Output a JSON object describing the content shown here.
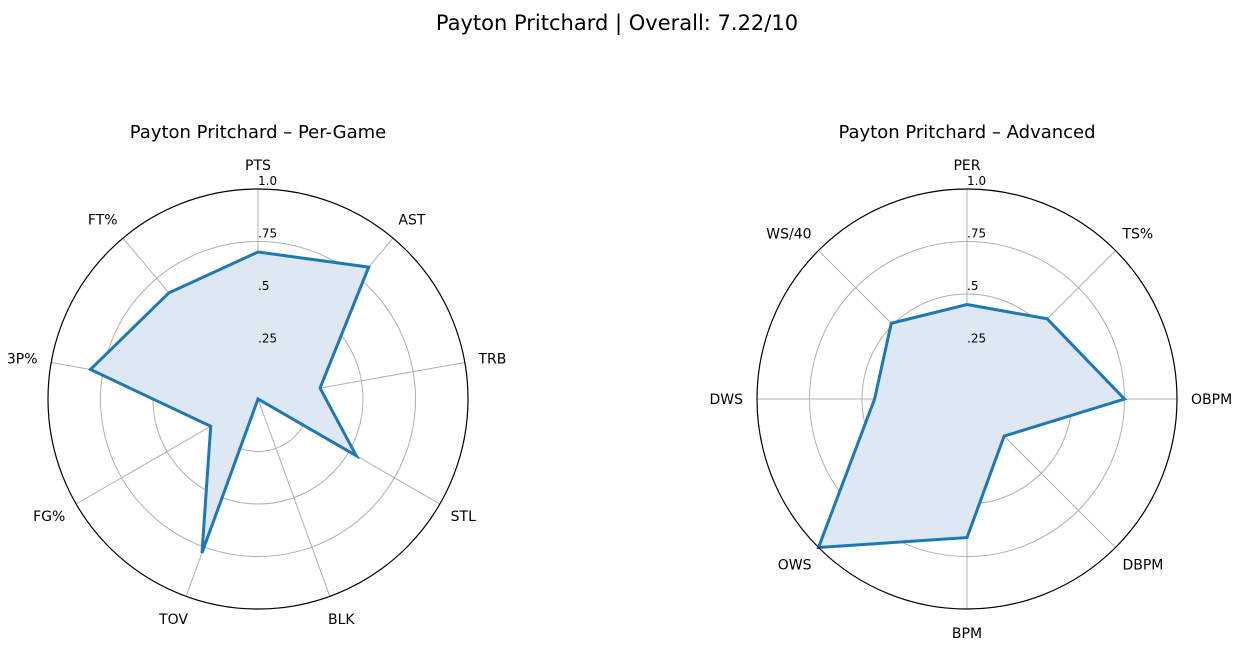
{
  "figure": {
    "title": "Payton Pritchard | Overall: 7.22/10"
  },
  "chart_data": [
    {
      "type": "radar",
      "title": "Payton Pritchard – Per-Game",
      "categories": [
        "PTS",
        "AST",
        "TRB",
        "STL",
        "BLK",
        "TOV",
        "FG%",
        "3P%",
        "FT%"
      ],
      "values": [
        0.7,
        0.82,
        0.3,
        0.54,
        0.0,
        0.78,
        0.26,
        0.81,
        0.66
      ],
      "radial_ticks": [
        0.25,
        0.5,
        0.75,
        1.0
      ],
      "radial_tick_labels": [
        ".25",
        ".5",
        ".75",
        "1.0"
      ],
      "rlim": [
        0,
        1
      ],
      "grid": true,
      "colors": {
        "line": "#1f77b4",
        "fill": "#dde8f3",
        "grid": "#b0b0b0",
        "frame": "#000000"
      }
    },
    {
      "type": "radar",
      "title": "Payton Pritchard – Advanced",
      "categories": [
        "PER",
        "TS%",
        "OBPM",
        "DBPM",
        "BPM",
        "OWS",
        "DWS",
        "WS/40"
      ],
      "values": [
        0.45,
        0.54,
        0.75,
        0.25,
        0.66,
        1.0,
        0.44,
        0.51
      ],
      "radial_ticks": [
        0.25,
        0.5,
        0.75,
        1.0
      ],
      "radial_tick_labels": [
        ".25",
        ".5",
        ".75",
        "1.0"
      ],
      "rlim": [
        0,
        1
      ],
      "grid": true,
      "colors": {
        "line": "#1f77b4",
        "fill": "#dde8f3",
        "grid": "#b0b0b0",
        "frame": "#000000"
      }
    }
  ]
}
